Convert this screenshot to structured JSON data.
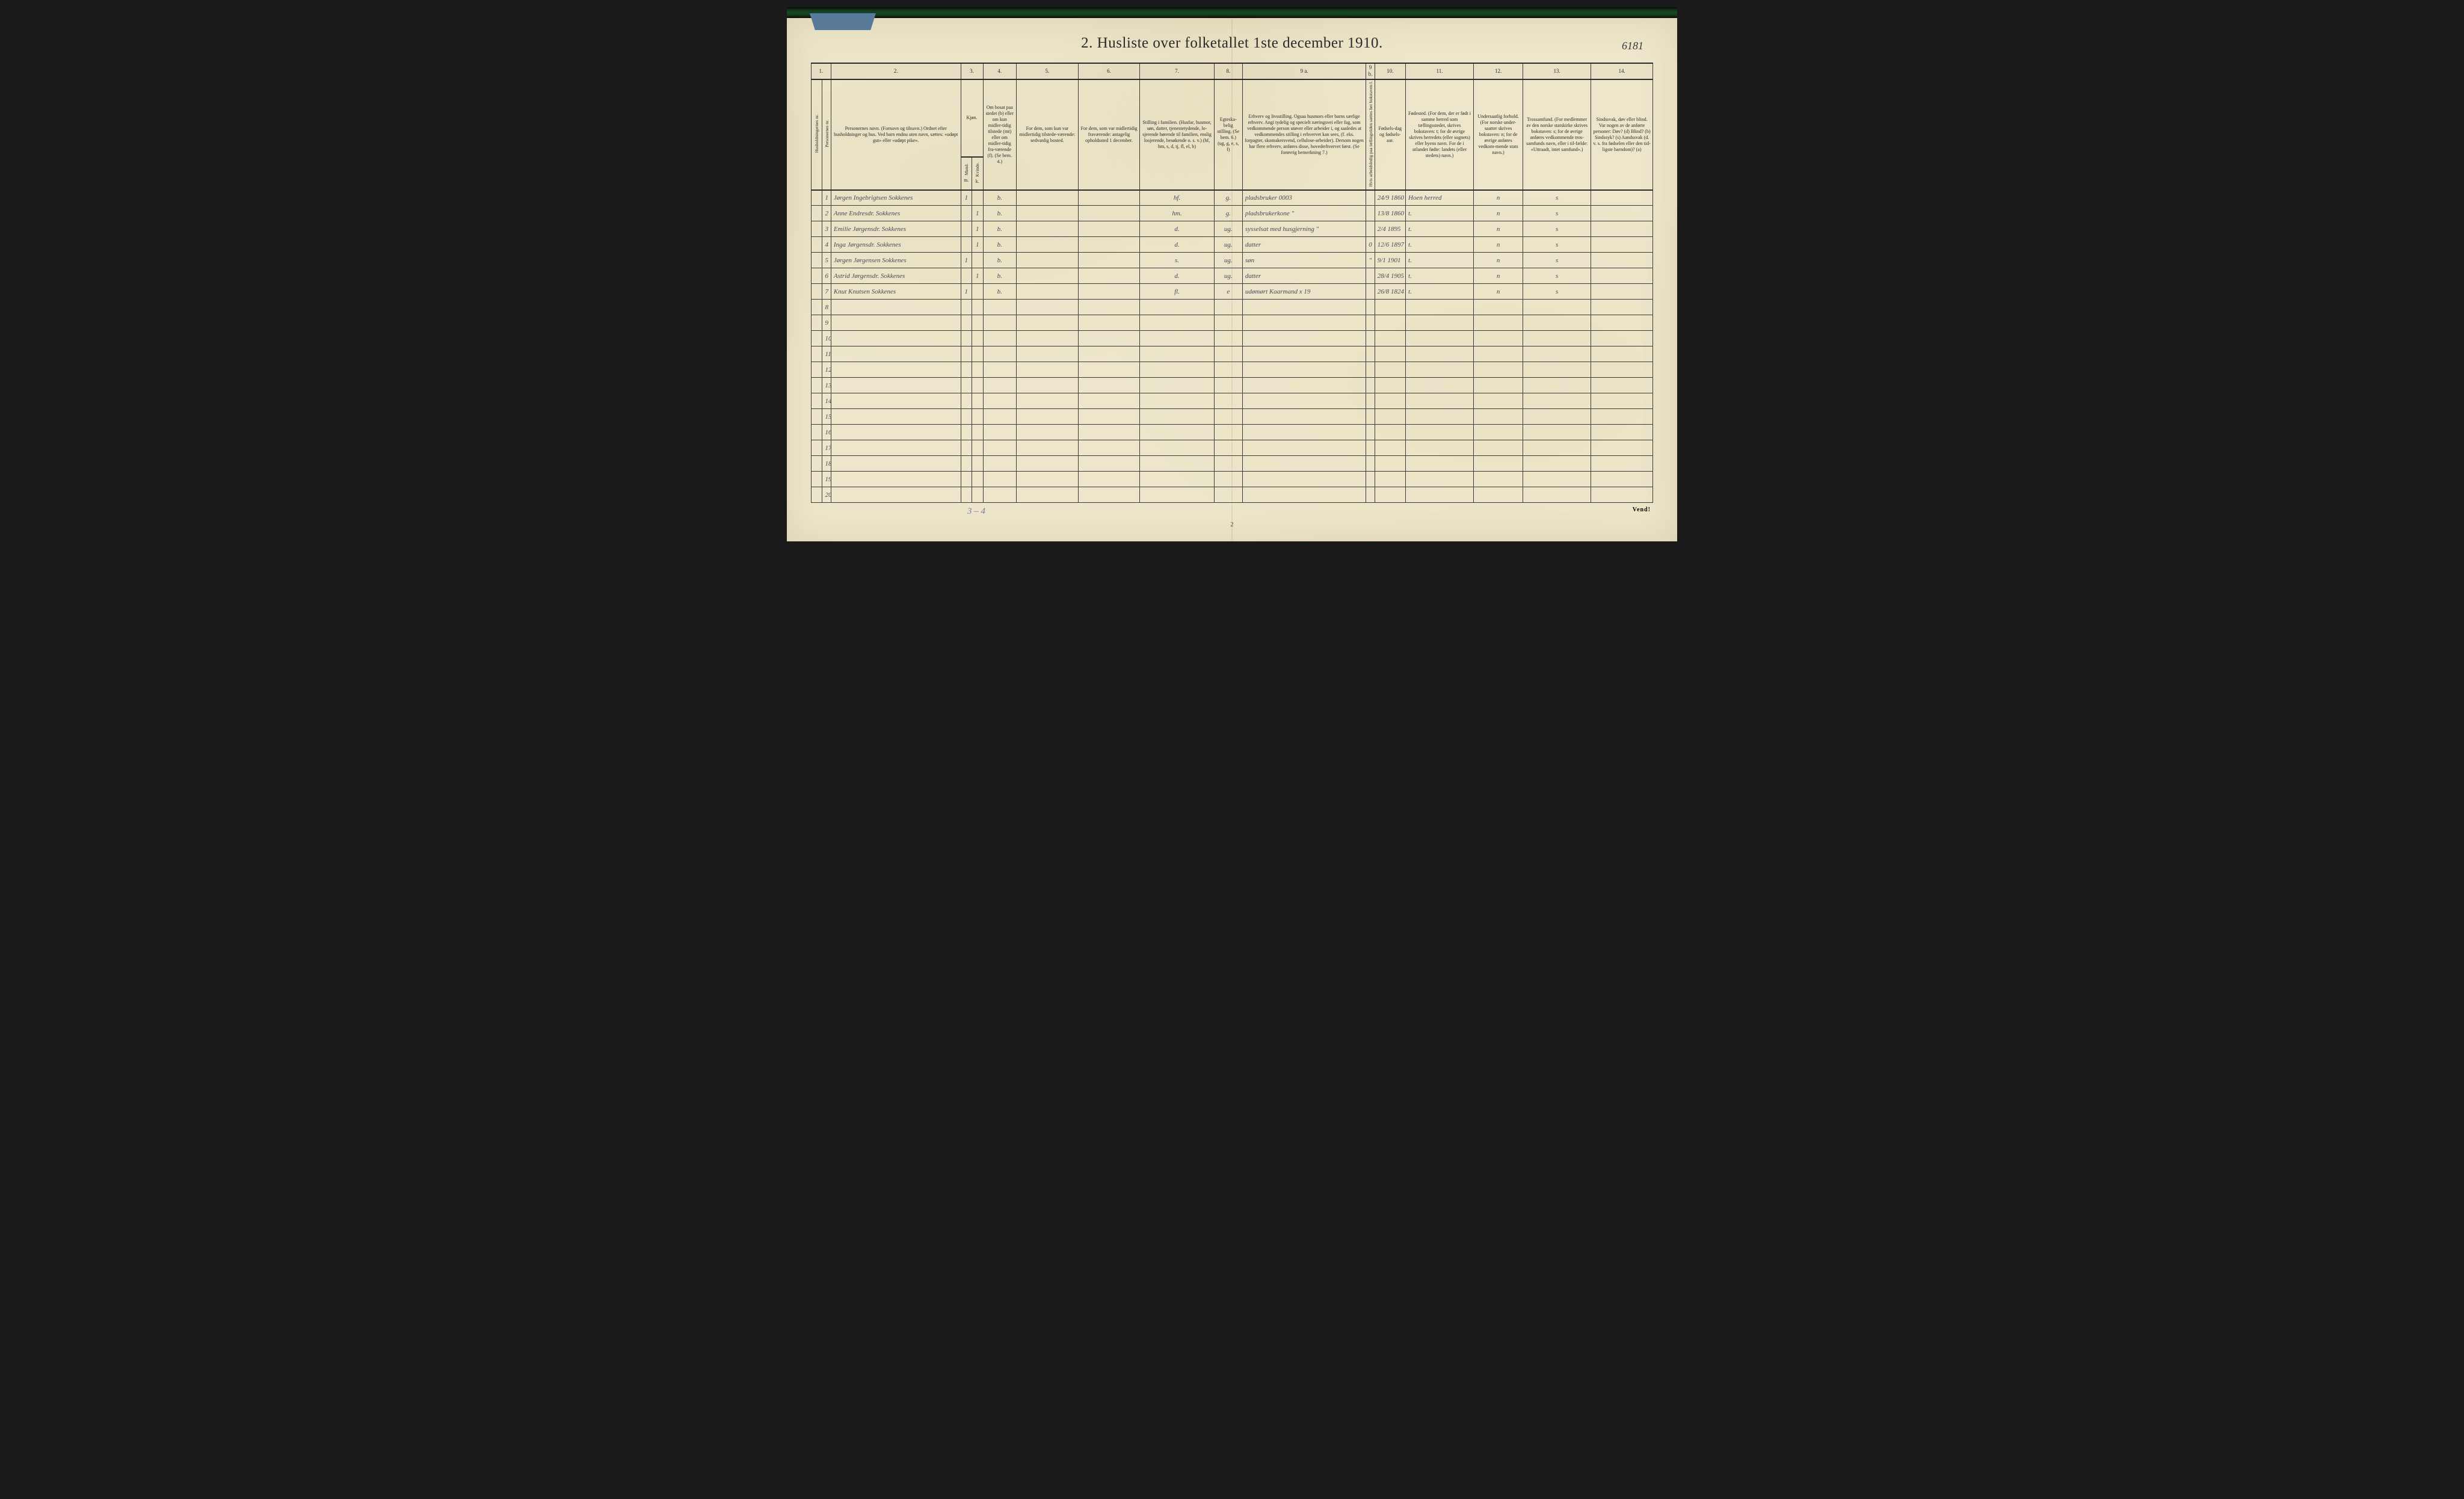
{
  "corner_handwritten": "6181",
  "title": "2.  Husliste over folketallet 1ste december 1910.",
  "col_numbers": [
    "1.",
    "",
    "2.",
    "3.",
    "",
    "4.",
    "5.",
    "6.",
    "7.",
    "8.",
    "9 a.",
    "9 b.",
    "10.",
    "11.",
    "12.",
    "13.",
    "14."
  ],
  "headers": {
    "c1": "Husholdningernes nr.",
    "c1b": "Personernes nr.",
    "c2": "Personernes navn.\n(Fornavn og tilnavn.)\nOrdnet efter husholdninger og hus.\nVed barn endnu uten navn, sættes: «udøpt gut» eller «udøpt pike».",
    "c3": "Kjøn.",
    "c3m": "m.",
    "c3k": "k.",
    "c3a": "Mand.",
    "c3b": "Kvinde.",
    "c4": "Om bosat paa stedet (b) eller om kun midler-tidig tilstede (mt) eller om midler-tidig fra-værende (f). (Se bem. 4.)",
    "c5": "For dem, som kun var\nmidlertidig tilstede-værende:\nsedvanlig bosted.",
    "c6": "For dem, som var\nmidlertidig\nfraværende:\nantagelig opholdssted 1 december.",
    "c7": "Stilling i familien.\n(Husfar, husmor, søn, datter, tjenestetydende, lo-sjerende hørende til familien, enslig losjerende, besøkende o. s. v.)\n(hf, hm, s, d, tj, fl, el, b)",
    "c8": "Egteska-belig stilling.\n(Se bem. 6.)\n(ug, g, e, s, f)",
    "c9a": "Erhverv og livsstilling.\nOgsaa husmors eller barns særlige erhverv.\nAngi tydelig og specielt næringsvei eller fag, som vedkommende person utøver eller arbeider i, og saaledes at vedkommendes stilling i erhvervet kan sees, (f. eks. forpagter, skomakersvend, cellulose-arbeider). Dersom nogen har flere erhverv, anføres disse, hovederhvervet først.\n(Se forøvrig bemerkning 7.)",
    "c9b": "Hvis arbeidsledig paa tællingstiden sættes her bokstaven l.",
    "c10": "Fødsels-dag og fødsels-aar.",
    "c11": "Fødested.\n(For dem, der er født i samme herred som tællingsstedet, skrives bokstaven: t; for de øvrige skrives herredets (eller sognets) eller byens navn. For de i utlandet fødte: landets (eller stedets) navn.)",
    "c12": "Undersaatlig forhold.\n(For norske under-saatter skrives bokstaven: n; for de øvrige anføres vedkom-mende stats navn.)",
    "c13": "Trossamfund.\n(For medlemmer av den norske statskirke skrives bokstaven: s; for de øvrige anføres vedkommende tros-samfunds navn, eller i til-fælde: «Uttraadt, intet samfund».)",
    "c14": "Sindssvak, døv eller blind.\nVar nogen av de anførte personer:\nDøv? (d)\nBlind? (b)\nSindssyk? (s)\nAandssvak (d. v. s. fra fødselen eller den tid-ligste barndom)? (a)"
  },
  "rows": [
    {
      "n": "1",
      "name": "Jørgen Ingebrigtsen Sokkenes",
      "m": "1",
      "k": "",
      "b": "b.",
      "c5": "",
      "c6": "",
      "stil": "hf.",
      "mar": "0",
      "egt": "g.",
      "erhv": "pladsbruker   0003",
      "l": "",
      "fod": "24/9 1860",
      "sted": "Hoen herred",
      "us": "n",
      "tro": "s",
      "c14": ""
    },
    {
      "n": "2",
      "name": "Anne Endresdr. Sokkenes",
      "m": "",
      "k": "1",
      "b": "b.",
      "c5": "",
      "c6": "",
      "stil": "hm.",
      "mar": "1",
      "egt": "g.",
      "erhv": "pladsbrukerkone   \"",
      "l": "",
      "fod": "13/8 1860",
      "sted": "t.",
      "us": "n",
      "tro": "s",
      "c14": ""
    },
    {
      "n": "3",
      "name": "Emilie Jørgensdr. Sokkenes",
      "m": "",
      "k": "1",
      "b": "b.",
      "c5": "",
      "c6": "",
      "stil": "d.",
      "mar": "3",
      "egt": "ug.",
      "erhv": "sysselsat med husgjerning \"",
      "l": "",
      "fod": "2/4 1895",
      "sted": "t.",
      "us": "n",
      "tro": "s",
      "c14": ""
    },
    {
      "n": "4",
      "name": "Inga Jørgensdr. Sokkenes",
      "m": "",
      "k": "1",
      "b": "b.",
      "c5": "",
      "c6": "",
      "stil": "d.",
      "mar": "5",
      "egt": "ug.",
      "erhv": "datter",
      "l": "0",
      "fod": "12/6 1897",
      "sted": "t.",
      "us": "n",
      "tro": "s",
      "c14": ""
    },
    {
      "n": "5",
      "name": "Jørgen Jørgensen Sokkenes",
      "m": "1",
      "k": "",
      "b": "b.",
      "c5": "",
      "c6": "",
      "stil": "s.",
      "mar": "5",
      "egt": "ug.",
      "erhv": "søn",
      "l": "\"",
      "fod": "9/1 1901",
      "sted": "t.",
      "us": "n",
      "tro": "s",
      "c14": ""
    },
    {
      "n": "6",
      "name": "Astrid Jørgensdr. Sokkenes",
      "m": "",
      "k": "1",
      "b": "b.",
      "c5": "",
      "c6": "",
      "stil": "d.",
      "mar": "5",
      "egt": "ug.",
      "erhv": "datter",
      "l": "",
      "fod": "28/4 1905",
      "sted": "t.",
      "us": "n",
      "tro": "s",
      "c14": ""
    },
    {
      "n": "7",
      "name": "Knut Knutsen Sokkenes",
      "m": "1",
      "k": "",
      "b": "b.",
      "c5": "",
      "c6": "",
      "stil": "fl.",
      "mar": "0",
      "egt": "e",
      "erhv": "udømørt Kaarmand  x 19",
      "l": "",
      "fod": "26/8 1824",
      "sted": "t.",
      "us": "n",
      "tro": "s",
      "c14": ""
    },
    {
      "n": "8"
    },
    {
      "n": "9"
    },
    {
      "n": "10"
    },
    {
      "n": "11"
    },
    {
      "n": "12"
    },
    {
      "n": "13"
    },
    {
      "n": "14"
    },
    {
      "n": "15"
    },
    {
      "n": "16"
    },
    {
      "n": "17"
    },
    {
      "n": "18"
    },
    {
      "n": "19"
    },
    {
      "n": "20"
    }
  ],
  "pencil_bottom": "3 – 4",
  "page_foot": "2",
  "vend": "Vend!"
}
